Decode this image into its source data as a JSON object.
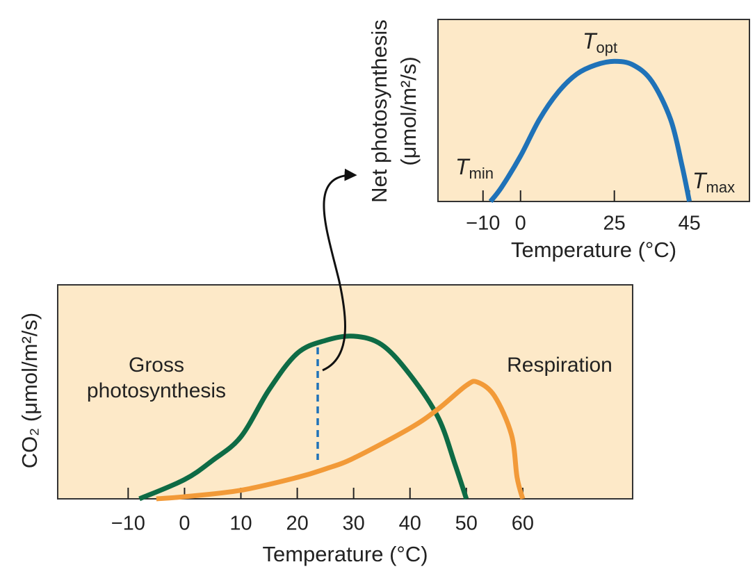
{
  "chart_data": [
    {
      "type": "line",
      "x_label": "Temperature (°C)",
      "y_label": "CO₂ (μmol/m²/s)",
      "xlim": [
        -22.5,
        79.5
      ],
      "ylim": [
        0,
        100
      ],
      "xticks": [
        {
          "value": -10,
          "label": "−10"
        },
        0,
        10,
        20,
        30,
        40,
        50,
        60
      ],
      "series": [
        {
          "name": "Gross photosynthesis",
          "color": "#0e6b45",
          "x": [
            -8,
            0,
            5,
            10,
            15,
            20,
            25,
            30,
            35,
            40,
            45,
            48,
            50
          ],
          "values": [
            0,
            9,
            18,
            29,
            51,
            68,
            74,
            76,
            72,
            58,
            38,
            16,
            0
          ]
        },
        {
          "name": "Respiration",
          "color": "#f29a38",
          "x": [
            -5,
            0,
            10,
            20,
            25,
            30,
            40,
            45,
            50,
            52,
            55,
            58,
            59,
            60
          ],
          "values": [
            0,
            1,
            4,
            10,
            14,
            19,
            33,
            42,
            53,
            54.5,
            48,
            30,
            10,
            0
          ]
        }
      ]
    },
    {
      "type": "line",
      "x_label": "Temperature (°C)",
      "y_label": [
        "Net photosynthesis",
        "(μmol/m²/s)"
      ],
      "xlim": [
        -22,
        61
      ],
      "ylim": [
        0,
        100
      ],
      "xticks": [
        {
          "value": -10,
          "label": "−10"
        },
        0,
        25,
        45
      ],
      "annotations": [
        {
          "text": "T",
          "subscript": "opt"
        },
        {
          "text": "T",
          "subscript": "min"
        },
        {
          "text": "T",
          "subscript": "max"
        }
      ],
      "series": [
        {
          "name": "Net photosynthesis",
          "color": "#1f72b8",
          "x": [
            -8,
            -5,
            0,
            5,
            10,
            15,
            20,
            25,
            30,
            35,
            40,
            43,
            45
          ],
          "values": [
            0,
            8,
            25,
            45,
            60,
            70,
            75,
            77,
            75,
            66,
            45,
            20,
            0
          ]
        }
      ]
    }
  ]
}
